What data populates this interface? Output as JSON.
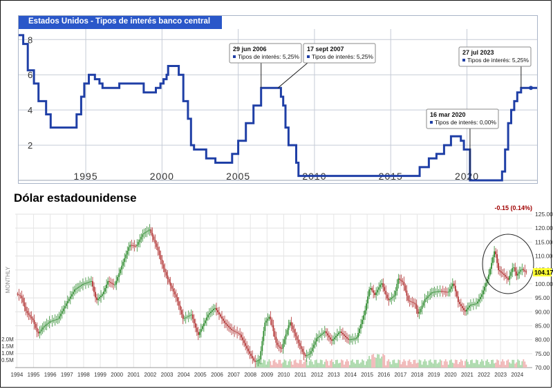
{
  "chart_data": [
    {
      "type": "line",
      "title": "Estados Unidos - Tipos de interés banco central",
      "xlabel": "",
      "ylabel": "",
      "xlim": [
        1990.6,
        2024.6
      ],
      "ylim": [
        0,
        8.6
      ],
      "x_ticks": [
        "1995",
        "2000",
        "2005",
        "2010",
        "2015",
        "2020"
      ],
      "x_tick_values": [
        1995,
        2000,
        2005,
        2010,
        2015,
        2020
      ],
      "y_ticks": [
        "2",
        "4",
        "6",
        "8"
      ],
      "y_tick_values": [
        2,
        4,
        6,
        8
      ],
      "grid": true,
      "series": [
        {
          "name": "Tipos de interés",
          "color": "#1f3fa6",
          "points": [
            [
              1990.6,
              8.25
            ],
            [
              1990.9,
              7.75
            ],
            [
              1991.2,
              6.25
            ],
            [
              1991.6,
              5.5
            ],
            [
              1991.9,
              4.5
            ],
            [
              1992.4,
              3.75
            ],
            [
              1992.7,
              3.0
            ],
            [
              1994.1,
              3.0
            ],
            [
              1994.4,
              3.75
            ],
            [
              1994.7,
              4.75
            ],
            [
              1994.9,
              5.5
            ],
            [
              1995.2,
              6.0
            ],
            [
              1995.6,
              5.75
            ],
            [
              1995.9,
              5.5
            ],
            [
              1996.1,
              5.25
            ],
            [
              1997.2,
              5.5
            ],
            [
              1998.0,
              5.5
            ],
            [
              1998.7,
              5.5
            ],
            [
              1998.8,
              5.0
            ],
            [
              1999.4,
              5.0
            ],
            [
              1999.6,
              5.25
            ],
            [
              1999.9,
              5.5
            ],
            [
              2000.1,
              5.75
            ],
            [
              2000.3,
              6.0
            ],
            [
              2000.4,
              6.5
            ],
            [
              2000.9,
              6.5
            ],
            [
              2001.1,
              6.0
            ],
            [
              2001.4,
              4.5
            ],
            [
              2001.7,
              3.5
            ],
            [
              2001.9,
              2.0
            ],
            [
              2002.1,
              1.75
            ],
            [
              2002.9,
              1.25
            ],
            [
              2003.5,
              1.0
            ],
            [
              2004.4,
              1.0
            ],
            [
              2004.6,
              1.5
            ],
            [
              2005.0,
              2.25
            ],
            [
              2005.5,
              3.25
            ],
            [
              2006.0,
              4.25
            ],
            [
              2006.5,
              5.25
            ],
            [
              2007.6,
              5.25
            ],
            [
              2007.8,
              4.75
            ],
            [
              2007.95,
              4.25
            ],
            [
              2008.1,
              3.0
            ],
            [
              2008.3,
              2.0
            ],
            [
              2008.8,
              1.0
            ],
            [
              2008.95,
              0.25
            ],
            [
              2015.9,
              0.25
            ],
            [
              2016.9,
              0.75
            ],
            [
              2017.5,
              1.25
            ],
            [
              2018.0,
              1.5
            ],
            [
              2018.5,
              2.0
            ],
            [
              2018.95,
              2.5
            ],
            [
              2019.6,
              2.25
            ],
            [
              2019.8,
              1.75
            ],
            [
              2020.2,
              0.0
            ],
            [
              2022.1,
              0.0
            ],
            [
              2022.3,
              0.5
            ],
            [
              2022.5,
              1.75
            ],
            [
              2022.7,
              3.25
            ],
            [
              2022.9,
              4.0
            ],
            [
              2023.1,
              4.5
            ],
            [
              2023.3,
              5.0
            ],
            [
              2023.55,
              5.25
            ],
            [
              2024.6,
              5.25
            ]
          ]
        }
      ],
      "annotations": [
        {
          "title": "29 jun 2006",
          "text": "Tipos de interés: 5,25%",
          "x": 2006.5,
          "y": 5.25
        },
        {
          "title": "17 sept 2007",
          "text": "Tipos de interés: 5,25%",
          "x": 2007.6,
          "y": 5.25
        },
        {
          "title": "16 mar 2020",
          "text": "Tipos de interés: 0,00%",
          "x": 2020.2,
          "y": 0.0
        },
        {
          "title": "27 jul 2023",
          "text": "Tipos de interés: 5,25%",
          "x": 2023.55,
          "y": 5.25
        }
      ]
    },
    {
      "type": "line",
      "title": "Dólar estadounidense",
      "subtitle": "MONTHLY",
      "xlabel": "",
      "ylabel": "",
      "xlim": [
        1993.9,
        2024.9
      ],
      "ylim": [
        70,
        125
      ],
      "x_ticks": [
        "1994",
        "1995",
        "1996",
        "1997",
        "1998",
        "1999",
        "2000",
        "2001",
        "2002",
        "2003",
        "2004",
        "2005",
        "2006",
        "2007",
        "2008",
        "2009",
        "2010",
        "2011",
        "2012",
        "2013",
        "2014",
        "2015",
        "2016",
        "2017",
        "2018",
        "2019",
        "2020",
        "2021",
        "2022",
        "2023",
        "2024"
      ],
      "y_ticks": [
        "70.00",
        "75.00",
        "80.00",
        "85.00",
        "90.00",
        "95.00",
        "100.00",
        "105.00",
        "110.00",
        "115.00",
        "120.00",
        "125.00"
      ],
      "y_tick_values": [
        70,
        75,
        80,
        85,
        90,
        95,
        100,
        105,
        110,
        115,
        120,
        125
      ],
      "volume_ticks": [
        "2.0M",
        "1.5M",
        "1.0M",
        "0.5M"
      ],
      "grid": true,
      "series": [
        {
          "name": "Dólar estadounidense",
          "color": "#2e8b2e",
          "points": [
            [
              1994.0,
              96.5
            ],
            [
              1994.3,
              95.5
            ],
            [
              1994.6,
              90.0
            ],
            [
              1995.0,
              87.0
            ],
            [
              1995.3,
              82.0
            ],
            [
              1995.6,
              84.5
            ],
            [
              1996.0,
              86.5
            ],
            [
              1996.5,
              87.5
            ],
            [
              1997.0,
              93.0
            ],
            [
              1997.5,
              98.0
            ],
            [
              1998.0,
              100.0
            ],
            [
              1998.5,
              101.0
            ],
            [
              1998.8,
              94.0
            ],
            [
              1999.2,
              96.5
            ],
            [
              1999.5,
              101.0
            ],
            [
              1999.9,
              99.5
            ],
            [
              2000.3,
              106.0
            ],
            [
              2000.8,
              114.0
            ],
            [
              2001.2,
              113.5
            ],
            [
              2001.6,
              118.0
            ],
            [
              2002.0,
              119.5
            ],
            [
              2002.5,
              112.0
            ],
            [
              2002.8,
              106.0
            ],
            [
              2003.2,
              100.0
            ],
            [
              2003.6,
              95.0
            ],
            [
              2004.0,
              87.5
            ],
            [
              2004.5,
              89.0
            ],
            [
              2004.9,
              81.5
            ],
            [
              2005.5,
              89.0
            ],
            [
              2005.9,
              91.5
            ],
            [
              2006.5,
              86.0
            ],
            [
              2006.9,
              83.5
            ],
            [
              2007.4,
              82.0
            ],
            [
              2007.9,
              76.0
            ],
            [
              2008.3,
              72.0
            ],
            [
              2008.6,
              73.0
            ],
            [
              2008.9,
              86.0
            ],
            [
              2009.2,
              88.5
            ],
            [
              2009.6,
              78.5
            ],
            [
              2009.9,
              76.5
            ],
            [
              2010.4,
              86.5
            ],
            [
              2010.9,
              79.0
            ],
            [
              2011.3,
              74.0
            ],
            [
              2011.6,
              75.0
            ],
            [
              2012.0,
              80.5
            ],
            [
              2012.5,
              83.0
            ],
            [
              2012.9,
              79.5
            ],
            [
              2013.4,
              83.0
            ],
            [
              2013.9,
              80.0
            ],
            [
              2014.4,
              80.5
            ],
            [
              2014.9,
              90.0
            ],
            [
              2015.2,
              99.0
            ],
            [
              2015.5,
              96.0
            ],
            [
              2015.9,
              100.5
            ],
            [
              2016.3,
              94.0
            ],
            [
              2016.7,
              96.0
            ],
            [
              2016.9,
              102.0
            ],
            [
              2017.2,
              100.5
            ],
            [
              2017.5,
              94.0
            ],
            [
              2017.9,
              93.0
            ],
            [
              2018.1,
              89.0
            ],
            [
              2018.5,
              94.5
            ],
            [
              2018.9,
              97.0
            ],
            [
              2019.4,
              97.5
            ],
            [
              2019.9,
              97.0
            ],
            [
              2020.2,
              100.5
            ],
            [
              2020.5,
              93.5
            ],
            [
              2020.9,
              90.0
            ],
            [
              2021.2,
              92.5
            ],
            [
              2021.6,
              93.0
            ],
            [
              2021.9,
              96.0
            ],
            [
              2022.3,
              102.5
            ],
            [
              2022.7,
              112.5
            ],
            [
              2022.9,
              105.0
            ],
            [
              2023.2,
              103.5
            ],
            [
              2023.5,
              101.5
            ],
            [
              2023.8,
              106.5
            ],
            [
              2024.0,
              103.0
            ],
            [
              2024.3,
              105.5
            ],
            [
              2024.55,
              104.17
            ]
          ]
        }
      ],
      "last_value": "104.17",
      "change_label": "-0.15 (0.14%)",
      "colors": {
        "up": "#2e8b2e",
        "down": "#b03030",
        "highlight": "#ffff33"
      }
    }
  ]
}
